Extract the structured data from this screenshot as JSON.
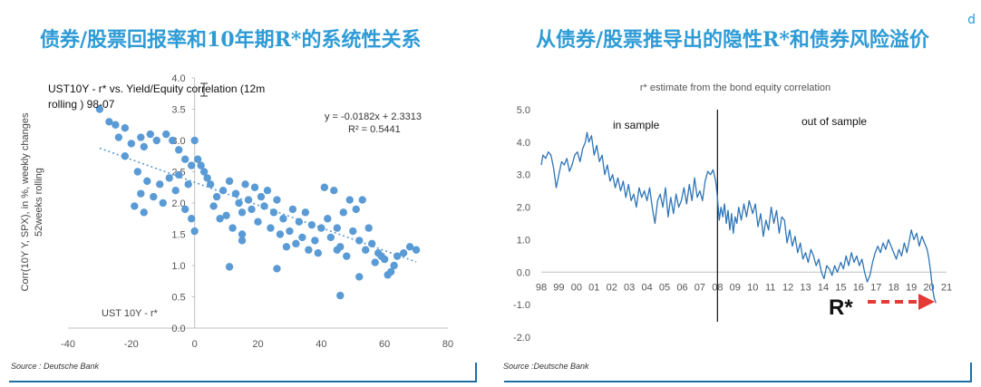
{
  "left_panel": {
    "title": "债券/股票回报率和10年期R*的系统性关系",
    "source": "Source : Deutsche Bank"
  },
  "right_panel": {
    "title": "从债券/股票推导出的隐性R*和债券风险溢价",
    "source": "Source :Deutsche Bank",
    "corner_mark": "d"
  },
  "colors": {
    "title_blue": "#2e9bd6",
    "series_blue": "#2e75b6",
    "point_blue": "#5b9bd5",
    "arrow_red": "#e53935",
    "rule_blue": "#1f6fa6"
  },
  "chart_data": [
    {
      "type": "scatter",
      "title": "UST10Y - r* vs. Yield/Equity correlation (12m rolling ) 98-07",
      "xlabel": "UST 10Y - r*",
      "ylabel": "Corr(10Y Y, SPX), in %, weekly changes 52weeks rolling",
      "ylabel_lines": [
        "Corr(10Y Y, SPX), in %, weekly changes",
        "52weeks rolling"
      ],
      "xlim": [
        -40,
        80
      ],
      "ylim": [
        0,
        4
      ],
      "xticks": [
        -40,
        -20,
        0,
        20,
        40,
        60,
        80
      ],
      "yticks": [
        0.0,
        0.5,
        1.0,
        1.5,
        2.0,
        2.5,
        3.0,
        3.5,
        4.0
      ],
      "trendline": {
        "equation": "y = -0.0182x + 2.3313",
        "r2": "R² = 0.5441",
        "slope": -0.0182,
        "intercept": 2.3313,
        "x_range": [
          -30,
          70
        ]
      },
      "points": [
        [
          -30,
          3.5
        ],
        [
          -27,
          3.3
        ],
        [
          -25,
          3.25
        ],
        [
          -22,
          3.2
        ],
        [
          -24,
          3.05
        ],
        [
          -20,
          2.95
        ],
        [
          -17,
          3.05
        ],
        [
          -16,
          2.9
        ],
        [
          -14,
          3.1
        ],
        [
          -12,
          3.0
        ],
        [
          -9,
          3.1
        ],
        [
          -7,
          3.0
        ],
        [
          -5,
          2.85
        ],
        [
          -3,
          2.7
        ],
        [
          -1,
          2.6
        ],
        [
          0,
          3.0
        ],
        [
          1,
          2.7
        ],
        [
          2,
          2.6
        ],
        [
          -22,
          2.75
        ],
        [
          -18,
          2.5
        ],
        [
          -15,
          2.35
        ],
        [
          -13,
          2.1
        ],
        [
          -11,
          2.3
        ],
        [
          -8,
          2.4
        ],
        [
          -6,
          2.2
        ],
        [
          -5,
          2.45
        ],
        [
          -2,
          2.3
        ],
        [
          -17,
          2.15
        ],
        [
          -19,
          1.95
        ],
        [
          -16,
          1.85
        ],
        [
          -10,
          2.0
        ],
        [
          -3,
          1.9
        ],
        [
          -1,
          1.75
        ],
        [
          0,
          1.55
        ],
        [
          3,
          2.5
        ],
        [
          4,
          2.4
        ],
        [
          5,
          2.3
        ],
        [
          7,
          2.1
        ],
        [
          9,
          2.2
        ],
        [
          10,
          1.8
        ],
        [
          11,
          2.35
        ],
        [
          13,
          2.15
        ],
        [
          14,
          2.0
        ],
        [
          15,
          1.85
        ],
        [
          16,
          2.3
        ],
        [
          17,
          2.05
        ],
        [
          18,
          1.9
        ],
        [
          19,
          2.25
        ],
        [
          20,
          1.7
        ],
        [
          21,
          2.1
        ],
        [
          22,
          1.95
        ],
        [
          23,
          2.2
        ],
        [
          24,
          1.6
        ],
        [
          25,
          1.85
        ],
        [
          26,
          2.05
        ],
        [
          27,
          1.5
        ],
        [
          28,
          1.75
        ],
        [
          29,
          1.3
        ],
        [
          30,
          1.55
        ],
        [
          31,
          1.9
        ],
        [
          32,
          1.35
        ],
        [
          33,
          1.7
        ],
        [
          34,
          1.45
        ],
        [
          35,
          1.85
        ],
        [
          36,
          1.25
        ],
        [
          37,
          1.65
        ],
        [
          38,
          1.4
        ],
        [
          39,
          1.2
        ],
        [
          40,
          1.6
        ],
        [
          41,
          2.25
        ],
        [
          42,
          1.75
        ],
        [
          43,
          1.45
        ],
        [
          44,
          2.2
        ],
        [
          45,
          1.6
        ],
        [
          46,
          1.3
        ],
        [
          47,
          1.85
        ],
        [
          48,
          1.15
        ],
        [
          49,
          2.05
        ],
        [
          50,
          1.55
        ],
        [
          51,
          1.9
        ],
        [
          52,
          1.4
        ],
        [
          53,
          2.05
        ],
        [
          54,
          1.25
        ],
        [
          55,
          1.6
        ],
        [
          56,
          1.35
        ],
        [
          57,
          1.05
        ],
        [
          58,
          1.2
        ],
        [
          60,
          1.1
        ],
        [
          62,
          0.9
        ],
        [
          63,
          1.0
        ],
        [
          64,
          1.15
        ],
        [
          66,
          1.2
        ],
        [
          68,
          1.3
        ],
        [
          70,
          1.25
        ],
        [
          15,
          1.4
        ],
        [
          15,
          1.5
        ],
        [
          12,
          1.6
        ],
        [
          8,
          1.75
        ],
        [
          6,
          1.95
        ],
        [
          26,
          0.95
        ],
        [
          11,
          0.98
        ],
        [
          46,
          0.52
        ],
        [
          52,
          0.82
        ],
        [
          61,
          0.85
        ],
        [
          45,
          1.25
        ],
        [
          59,
          1.15
        ]
      ]
    },
    {
      "type": "line",
      "title": "r* estimate from the bond equity correlation",
      "xlabel": "",
      "ylabel": "",
      "categories": [
        "98",
        "99",
        "00",
        "01",
        "02",
        "03",
        "04",
        "05",
        "06",
        "07",
        "08",
        "09",
        "10",
        "11",
        "12",
        "13",
        "14",
        "15",
        "16",
        "17",
        "18",
        "19",
        "20",
        "21"
      ],
      "ylim": [
        -2.0,
        5.0
      ],
      "yticks": [
        -2.0,
        -1.0,
        0.0,
        1.0,
        2.0,
        3.0,
        4.0,
        5.0
      ],
      "divider_at": 2008.0,
      "annotations": [
        "in sample",
        "out of sample",
        "R*"
      ],
      "series": [
        {
          "points": [
            [
              1998.0,
              3.3
            ],
            [
              1998.1,
              3.6
            ],
            [
              1998.25,
              3.5
            ],
            [
              1998.4,
              3.7
            ],
            [
              1998.55,
              3.6
            ],
            [
              1998.7,
              3.2
            ],
            [
              1998.85,
              2.6
            ],
            [
              1999.0,
              3.0
            ],
            [
              1999.15,
              3.4
            ],
            [
              1999.3,
              3.3
            ],
            [
              1999.45,
              3.5
            ],
            [
              1999.6,
              3.1
            ],
            [
              1999.75,
              3.3
            ],
            [
              1999.9,
              3.6
            ],
            [
              2000.05,
              3.7
            ],
            [
              2000.2,
              3.4
            ],
            [
              2000.35,
              3.8
            ],
            [
              2000.5,
              4.0
            ],
            [
              2000.6,
              4.3
            ],
            [
              2000.7,
              4.0
            ],
            [
              2000.85,
              4.2
            ],
            [
              2001.0,
              3.6
            ],
            [
              2001.15,
              3.9
            ],
            [
              2001.3,
              3.4
            ],
            [
              2001.45,
              3.6
            ],
            [
              2001.6,
              3.0
            ],
            [
              2001.75,
              3.3
            ],
            [
              2001.9,
              2.8
            ],
            [
              2002.05,
              3.0
            ],
            [
              2002.2,
              2.6
            ],
            [
              2002.35,
              2.9
            ],
            [
              2002.5,
              2.5
            ],
            [
              2002.65,
              2.8
            ],
            [
              2002.8,
              2.3
            ],
            [
              2002.95,
              2.7
            ],
            [
              2003.1,
              2.2
            ],
            [
              2003.25,
              2.4
            ],
            [
              2003.4,
              2.0
            ],
            [
              2003.55,
              2.6
            ],
            [
              2003.7,
              2.3
            ],
            [
              2003.85,
              2.5
            ],
            [
              2004.0,
              2.2
            ],
            [
              2004.15,
              2.6
            ],
            [
              2004.3,
              2.0
            ],
            [
              2004.45,
              1.5
            ],
            [
              2004.6,
              2.2
            ],
            [
              2004.75,
              2.4
            ],
            [
              2004.9,
              2.0
            ],
            [
              2005.05,
              2.6
            ],
            [
              2005.2,
              1.7
            ],
            [
              2005.35,
              2.3
            ],
            [
              2005.5,
              1.8
            ],
            [
              2005.65,
              2.4
            ],
            [
              2005.8,
              2.0
            ],
            [
              2005.95,
              2.2
            ],
            [
              2006.1,
              2.6
            ],
            [
              2006.25,
              2.1
            ],
            [
              2006.4,
              2.7
            ],
            [
              2006.55,
              2.2
            ],
            [
              2006.7,
              2.9
            ],
            [
              2006.85,
              2.3
            ],
            [
              2007.0,
              2.5
            ],
            [
              2007.15,
              2.2
            ],
            [
              2007.3,
              2.8
            ],
            [
              2007.45,
              3.1
            ],
            [
              2007.6,
              3.0
            ],
            [
              2007.75,
              3.15
            ],
            [
              2007.9,
              2.8
            ],
            [
              2008.0,
              2.3
            ],
            [
              2008.1,
              1.6
            ],
            [
              2008.2,
              2.0
            ],
            [
              2008.3,
              1.7
            ],
            [
              2008.4,
              2.1
            ],
            [
              2008.5,
              1.5
            ],
            [
              2008.6,
              1.9
            ],
            [
              2008.7,
              1.3
            ],
            [
              2008.8,
              1.8
            ],
            [
              2008.9,
              1.2
            ],
            [
              2009.0,
              1.7
            ],
            [
              2009.1,
              1.5
            ],
            [
              2009.2,
              2.0
            ],
            [
              2009.35,
              1.6
            ],
            [
              2009.5,
              2.1
            ],
            [
              2009.65,
              1.7
            ],
            [
              2009.8,
              2.2
            ],
            [
              2010.0,
              1.8
            ],
            [
              2010.15,
              2.1
            ],
            [
              2010.3,
              1.4
            ],
            [
              2010.45,
              1.8
            ],
            [
              2010.6,
              1.1
            ],
            [
              2010.75,
              1.6
            ],
            [
              2010.9,
              1.3
            ],
            [
              2011.05,
              2.0
            ],
            [
              2011.2,
              1.5
            ],
            [
              2011.35,
              1.9
            ],
            [
              2011.5,
              1.2
            ],
            [
              2011.65,
              1.7
            ],
            [
              2011.8,
              1.6
            ],
            [
              2011.95,
              0.9
            ],
            [
              2012.1,
              1.3
            ],
            [
              2012.25,
              0.8
            ],
            [
              2012.4,
              1.1
            ],
            [
              2012.55,
              0.6
            ],
            [
              2012.7,
              0.9
            ],
            [
              2012.85,
              0.4
            ],
            [
              2013.0,
              0.6
            ],
            [
              2013.15,
              0.3
            ],
            [
              2013.3,
              0.7
            ],
            [
              2013.45,
              0.5
            ],
            [
              2013.6,
              0.2
            ],
            [
              2013.75,
              0.4
            ],
            [
              2013.9,
              0.0
            ],
            [
              2014.05,
              -0.2
            ],
            [
              2014.2,
              0.2
            ],
            [
              2014.35,
              0.1
            ],
            [
              2014.5,
              -0.1
            ],
            [
              2014.65,
              0.2
            ],
            [
              2014.8,
              0.0
            ],
            [
              2015.0,
              0.3
            ],
            [
              2015.15,
              0.1
            ],
            [
              2015.3,
              0.5
            ],
            [
              2015.45,
              0.2
            ],
            [
              2015.6,
              0.6
            ],
            [
              2015.75,
              0.3
            ],
            [
              2015.9,
              0.5
            ],
            [
              2016.05,
              0.2
            ],
            [
              2016.2,
              0.4
            ],
            [
              2016.35,
              0.0
            ],
            [
              2016.5,
              -0.3
            ],
            [
              2016.65,
              -0.1
            ],
            [
              2016.8,
              0.3
            ],
            [
              2016.95,
              0.6
            ],
            [
              2017.1,
              0.8
            ],
            [
              2017.25,
              0.6
            ],
            [
              2017.4,
              0.9
            ],
            [
              2017.55,
              0.7
            ],
            [
              2017.7,
              1.0
            ],
            [
              2017.85,
              0.8
            ],
            [
              2018.0,
              0.6
            ],
            [
              2018.15,
              0.4
            ],
            [
              2018.3,
              0.7
            ],
            [
              2018.45,
              0.5
            ],
            [
              2018.6,
              0.9
            ],
            [
              2018.75,
              0.6
            ],
            [
              2018.9,
              1.0
            ],
            [
              2019.0,
              1.3
            ],
            [
              2019.15,
              1.0
            ],
            [
              2019.3,
              1.2
            ],
            [
              2019.45,
              0.8
            ],
            [
              2019.6,
              1.1
            ],
            [
              2019.75,
              0.9
            ],
            [
              2019.9,
              0.7
            ],
            [
              2020.0,
              0.4
            ],
            [
              2020.1,
              0.0
            ],
            [
              2020.2,
              -0.5
            ],
            [
              2020.3,
              -0.8
            ],
            [
              2020.4,
              -0.95
            ]
          ]
        }
      ]
    }
  ]
}
